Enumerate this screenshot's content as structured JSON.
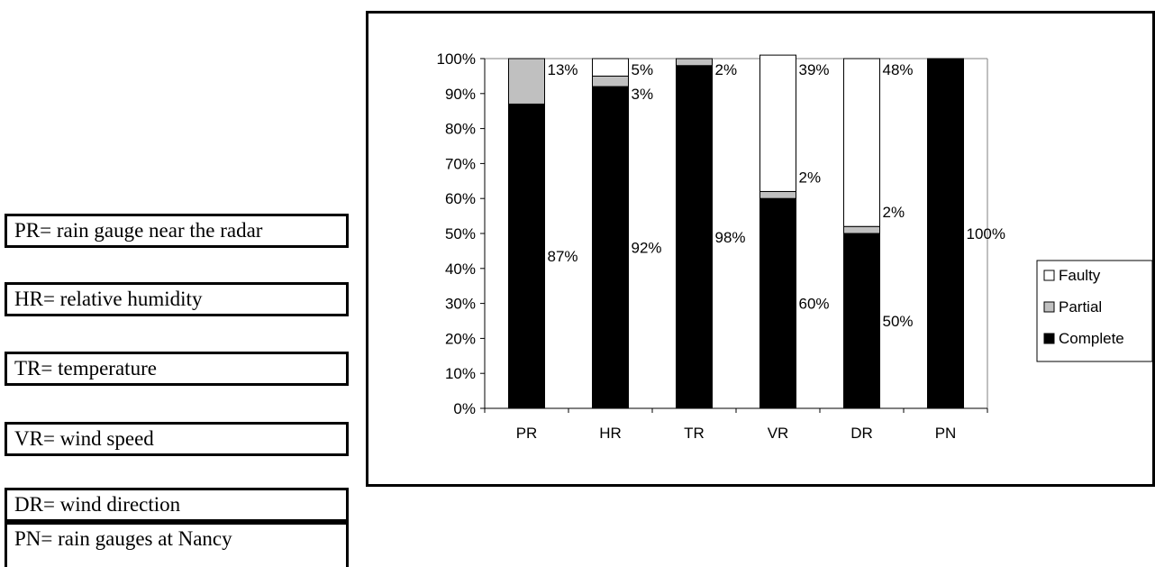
{
  "legend_boxes": [
    {
      "id": "PR",
      "text": "PR= rain gauge near the radar"
    },
    {
      "id": "HR",
      "text": "HR= relative humidity"
    },
    {
      "id": "TR",
      "text": "TR= temperature"
    },
    {
      "id": "VR",
      "text": "VR= wind speed"
    },
    {
      "id": "DR",
      "text": "DR= wind direction"
    },
    {
      "id": "PN",
      "text": "PN= rain gauges at Nancy"
    }
  ],
  "colors": {
    "complete": "#000000",
    "partial": "#c0c0c0",
    "faulty": "#ffffff",
    "axis": "#808080"
  },
  "chart_data": {
    "type": "bar",
    "stacked": true,
    "categories": [
      "PR",
      "HR",
      "TR",
      "VR",
      "DR",
      "PN"
    ],
    "series": [
      {
        "name": "Complete",
        "values": [
          87,
          92,
          98,
          60,
          50,
          100
        ]
      },
      {
        "name": "Partial",
        "values": [
          13,
          3,
          2,
          2,
          2,
          0
        ]
      },
      {
        "name": "Faulty",
        "values": [
          0,
          5,
          0,
          39,
          48,
          0
        ]
      }
    ],
    "data_labels": [
      [
        "87%",
        "13%"
      ],
      [
        "92%",
        "3%",
        "5%"
      ],
      [
        "98%",
        "2%"
      ],
      [
        "60%",
        "2%",
        "39%"
      ],
      [
        "50%",
        "2%",
        "48%"
      ],
      [
        "100%"
      ]
    ],
    "y_ticks": [
      "0%",
      "10%",
      "20%",
      "30%",
      "40%",
      "50%",
      "60%",
      "70%",
      "80%",
      "90%",
      "100%"
    ],
    "ylim": [
      0,
      100
    ],
    "legend": [
      "Faulty",
      "Partial",
      "Complete"
    ],
    "legend_position": "right",
    "grid": false,
    "title": "",
    "xlabel": "",
    "ylabel": ""
  }
}
